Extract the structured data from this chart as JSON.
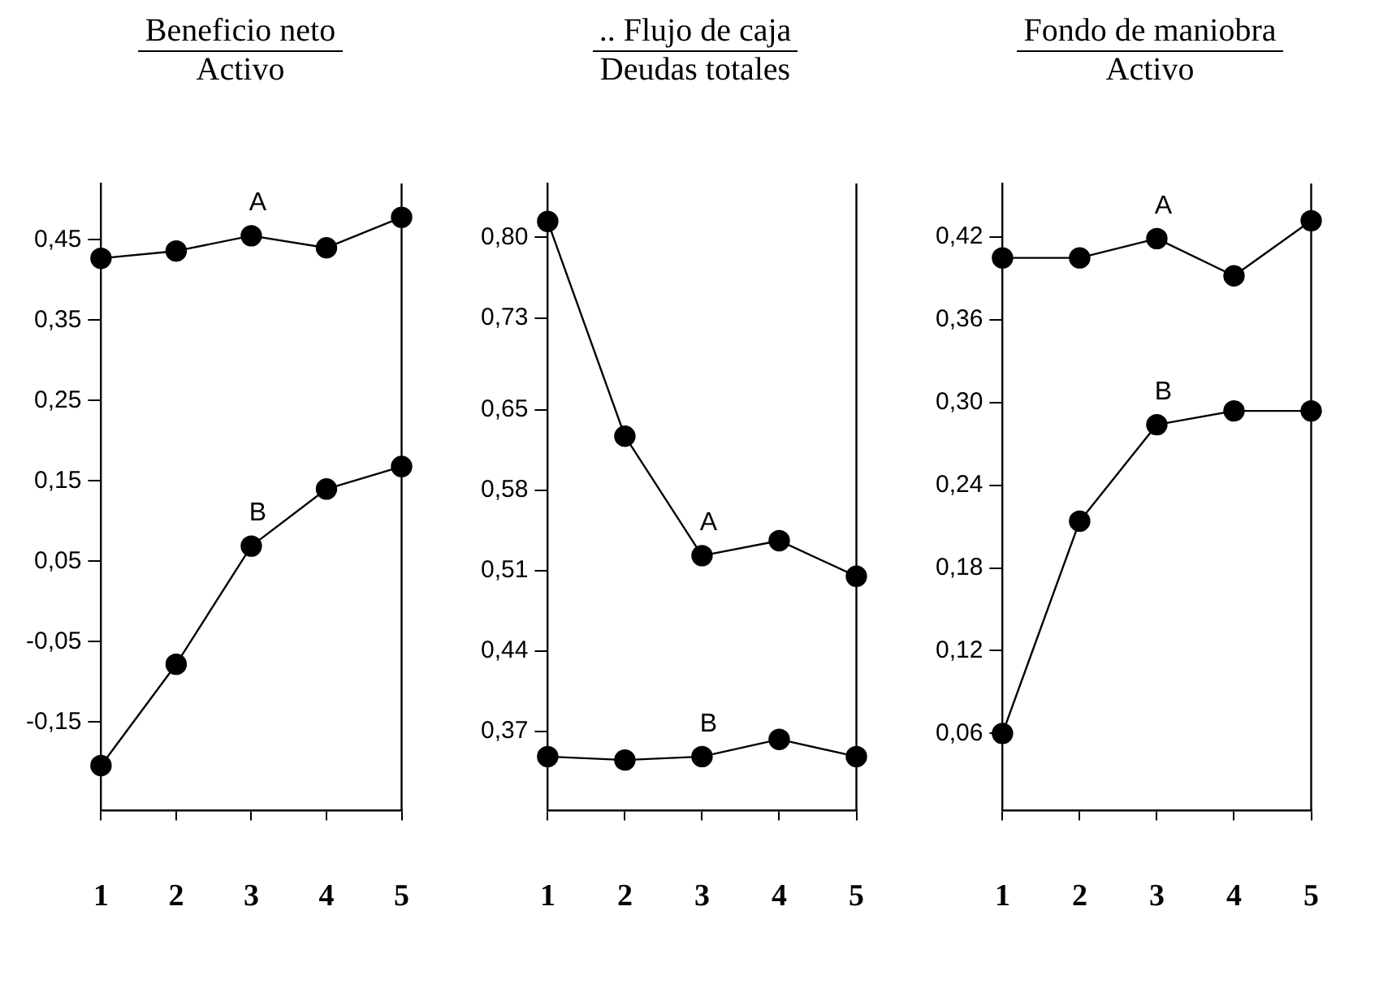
{
  "chart_data": [
    {
      "type": "line",
      "title": "Beneficio neto",
      "subtitle": "Activo",
      "categories": [
        "1",
        "2",
        "3",
        "4",
        "5"
      ],
      "ylim": [
        -0.26,
        0.52
      ],
      "yticks": [
        {
          "value": -0.15,
          "label": "-0,15"
        },
        {
          "value": -0.05,
          "label": "-0,05"
        },
        {
          "value": 0.05,
          "label": "0,05"
        },
        {
          "value": 0.15,
          "label": "0,15"
        },
        {
          "value": 0.25,
          "label": "0,25"
        },
        {
          "value": 0.35,
          "label": "0,35"
        },
        {
          "value": 0.45,
          "label": "0,45"
        }
      ],
      "series": [
        {
          "name": "A",
          "color": "#000000",
          "values": [
            0.427,
            0.436,
            0.455,
            0.44,
            0.478
          ]
        },
        {
          "name": "B",
          "color": "#000000",
          "values": [
            -0.204,
            -0.078,
            0.069,
            0.14,
            0.168
          ]
        }
      ],
      "marker": "circle",
      "grid": false
    },
    {
      "type": "line",
      "title": ".. Flujo de caja",
      "subtitle": "Deudas totales",
      "categories": [
        "1",
        "2",
        "3",
        "4",
        "5"
      ],
      "ylim": [
        0.301,
        0.847
      ],
      "yticks": [
        {
          "value": 0.37,
          "label": "0,37"
        },
        {
          "value": 0.44,
          "label": "0,44"
        },
        {
          "value": 0.51,
          "label": "0,51"
        },
        {
          "value": 0.58,
          "label": "0,58"
        },
        {
          "value": 0.65,
          "label": "0,65"
        },
        {
          "value": 0.73,
          "label": "0,73"
        },
        {
          "value": 0.8,
          "label": "0,80"
        }
      ],
      "series": [
        {
          "name": "A",
          "color": "#000000",
          "values": [
            0.814,
            0.627,
            0.523,
            0.536,
            0.505
          ]
        },
        {
          "name": "B",
          "color": "#000000",
          "values": [
            0.348,
            0.345,
            0.348,
            0.363,
            0.348
          ]
        }
      ],
      "marker": "circle",
      "grid": false
    },
    {
      "type": "line",
      "title": "Fondo de maniobra",
      "subtitle": "Activo",
      "categories": [
        "1",
        "2",
        "3",
        "4",
        "5"
      ],
      "ylim": [
        0.004,
        0.459
      ],
      "yticks": [
        {
          "value": 0.06,
          "label": "0,06"
        },
        {
          "value": 0.12,
          "label": "0,12"
        },
        {
          "value": 0.18,
          "label": "0,18"
        },
        {
          "value": 0.24,
          "label": "0,24"
        },
        {
          "value": 0.3,
          "label": "0,30"
        },
        {
          "value": 0.36,
          "label": "0,36"
        },
        {
          "value": 0.42,
          "label": "0,42"
        }
      ],
      "series": [
        {
          "name": "A",
          "color": "#000000",
          "values": [
            0.405,
            0.405,
            0.419,
            0.392,
            0.432
          ]
        },
        {
          "name": "B",
          "color": "#000000",
          "values": [
            0.06,
            0.214,
            0.284,
            0.294,
            0.294
          ]
        }
      ],
      "marker": "circle",
      "grid": false
    }
  ]
}
